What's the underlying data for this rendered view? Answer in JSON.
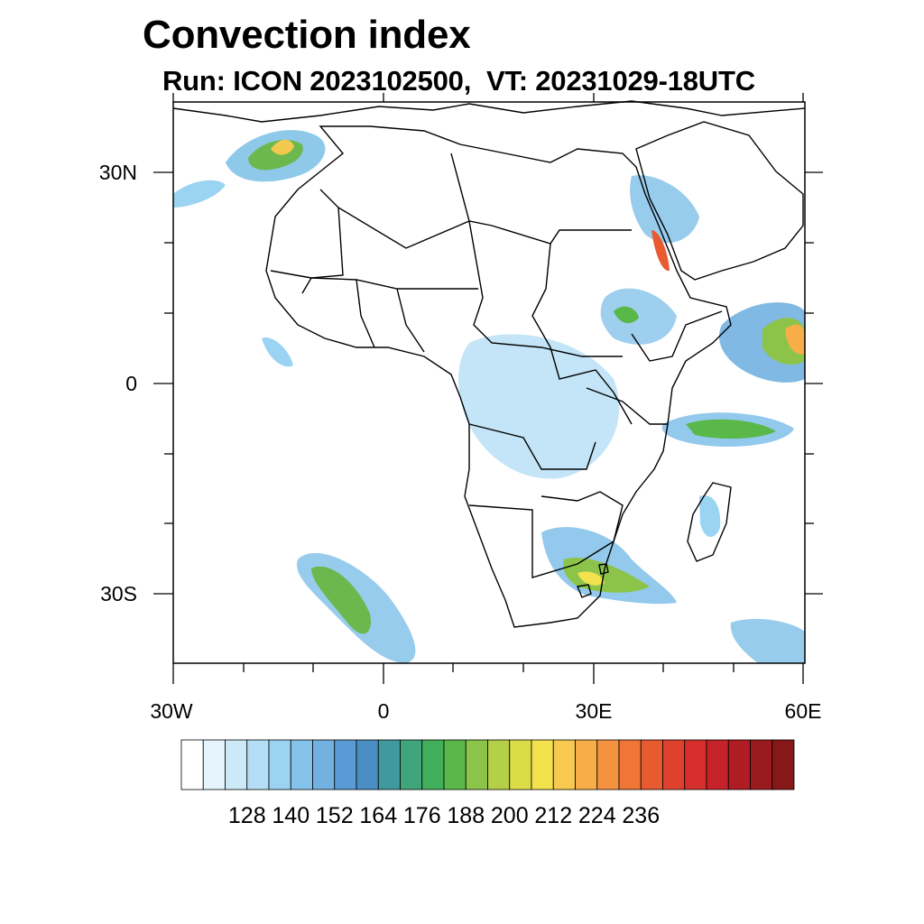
{
  "title": "Convection index",
  "subtitle": "Run: ICON 2023102500,  VT: 20231029-18UTC",
  "map": {
    "region": "Africa",
    "lon_range": [
      -30,
      60
    ],
    "lat_range": [
      -40,
      40
    ],
    "x_tick_labels": [
      "30W",
      "0",
      "30E",
      "60E"
    ],
    "y_tick_labels": [
      "30N",
      "0",
      "30S"
    ],
    "colors": {
      "coast": "#000000",
      "land": "#ffffff"
    }
  },
  "colorbar": {
    "labels": [
      "128",
      "140",
      "152",
      "164",
      "176",
      "188",
      "200",
      "212",
      "224",
      "236"
    ],
    "colors": [
      "#ffffff",
      "#e6f5fd",
      "#cce9f8",
      "#b4def5",
      "#9ad4f2",
      "#86c3ea",
      "#72b1e0",
      "#5a9bd5",
      "#4a8ec4",
      "#3f9aa0",
      "#40a57a",
      "#42b05a",
      "#5ab84a",
      "#8cc44a",
      "#b4d048",
      "#dcdc48",
      "#f2e24e",
      "#f7c94e",
      "#f7ae48",
      "#f59240",
      "#ef7636",
      "#e85a30",
      "#df422c",
      "#d62e2a",
      "#c6222a",
      "#b01c24",
      "#9a1a1e",
      "#861818"
    ]
  }
}
